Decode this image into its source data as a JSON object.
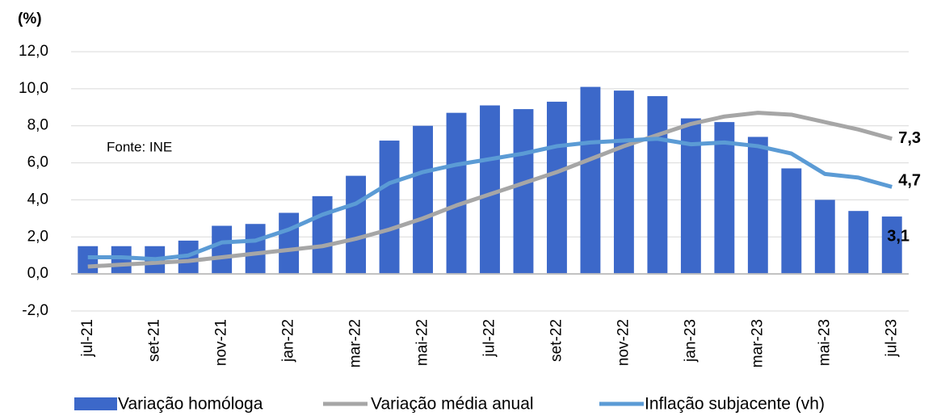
{
  "chart_data": {
    "type": "bar",
    "y_axis_label": "(%)",
    "annotation": "Fonte: INE",
    "categories": [
      "jul-21",
      null,
      "set-21",
      null,
      "nov-21",
      null,
      "jan-22",
      null,
      "mar-22",
      null,
      "mai-22",
      null,
      "jul-22",
      null,
      "set-22",
      null,
      "nov-22",
      null,
      "jan-23",
      null,
      "mar-23",
      null,
      "mai-23",
      null,
      "jul-23"
    ],
    "series": [
      {
        "name": "Variação homóloga",
        "type": "bar",
        "color": "#3c68c9",
        "values": [
          1.5,
          1.5,
          1.5,
          1.8,
          2.6,
          2.7,
          3.3,
          4.2,
          5.3,
          7.2,
          8.0,
          8.7,
          9.1,
          8.9,
          9.3,
          10.1,
          9.9,
          9.6,
          8.4,
          8.2,
          7.4,
          5.7,
          4.0,
          3.4,
          3.1
        ],
        "value_labels": [
          null,
          null,
          null,
          null,
          null,
          null,
          null,
          null,
          null,
          null,
          null,
          null,
          null,
          null,
          null,
          null,
          null,
          null,
          null,
          null,
          null,
          null,
          null,
          null,
          "3,1"
        ]
      },
      {
        "name": "Variação média anual",
        "type": "line",
        "color": "#a6a6a6",
        "values": [
          0.4,
          0.5,
          0.6,
          0.7,
          0.9,
          1.1,
          1.3,
          1.5,
          1.9,
          2.4,
          3.0,
          3.7,
          4.3,
          4.9,
          5.5,
          6.2,
          6.9,
          7.5,
          8.1,
          8.5,
          8.7,
          8.6,
          8.2,
          7.8,
          7.3
        ],
        "value_labels": [
          null,
          null,
          null,
          null,
          null,
          null,
          null,
          null,
          null,
          null,
          null,
          null,
          null,
          null,
          null,
          null,
          null,
          null,
          null,
          null,
          null,
          null,
          null,
          null,
          "7,3"
        ]
      },
      {
        "name": "Inflação subjacente  (vh)",
        "type": "line",
        "color": "#5b9bd5",
        "values": [
          0.9,
          0.9,
          0.8,
          1.0,
          1.7,
          1.8,
          2.4,
          3.2,
          3.8,
          4.9,
          5.5,
          5.9,
          6.2,
          6.5,
          6.9,
          7.1,
          7.2,
          7.3,
          7.0,
          7.1,
          6.9,
          6.5,
          5.4,
          5.2,
          4.7
        ],
        "value_labels": [
          null,
          null,
          null,
          null,
          null,
          null,
          null,
          null,
          null,
          null,
          null,
          null,
          null,
          null,
          null,
          null,
          null,
          null,
          null,
          null,
          null,
          null,
          null,
          null,
          "4,7"
        ]
      }
    ],
    "ylim": [
      -2,
      12
    ],
    "yticks": [
      {
        "value": -2,
        "label": "-2,0"
      },
      {
        "value": 0,
        "label": "0,0"
      },
      {
        "value": 2,
        "label": "2,0"
      },
      {
        "value": 4,
        "label": "4,0"
      },
      {
        "value": 6,
        "label": "6,0"
      },
      {
        "value": 8,
        "label": "8,0"
      },
      {
        "value": 10,
        "label": "10,0"
      },
      {
        "value": 12,
        "label": "12,0"
      }
    ],
    "grid": true
  }
}
